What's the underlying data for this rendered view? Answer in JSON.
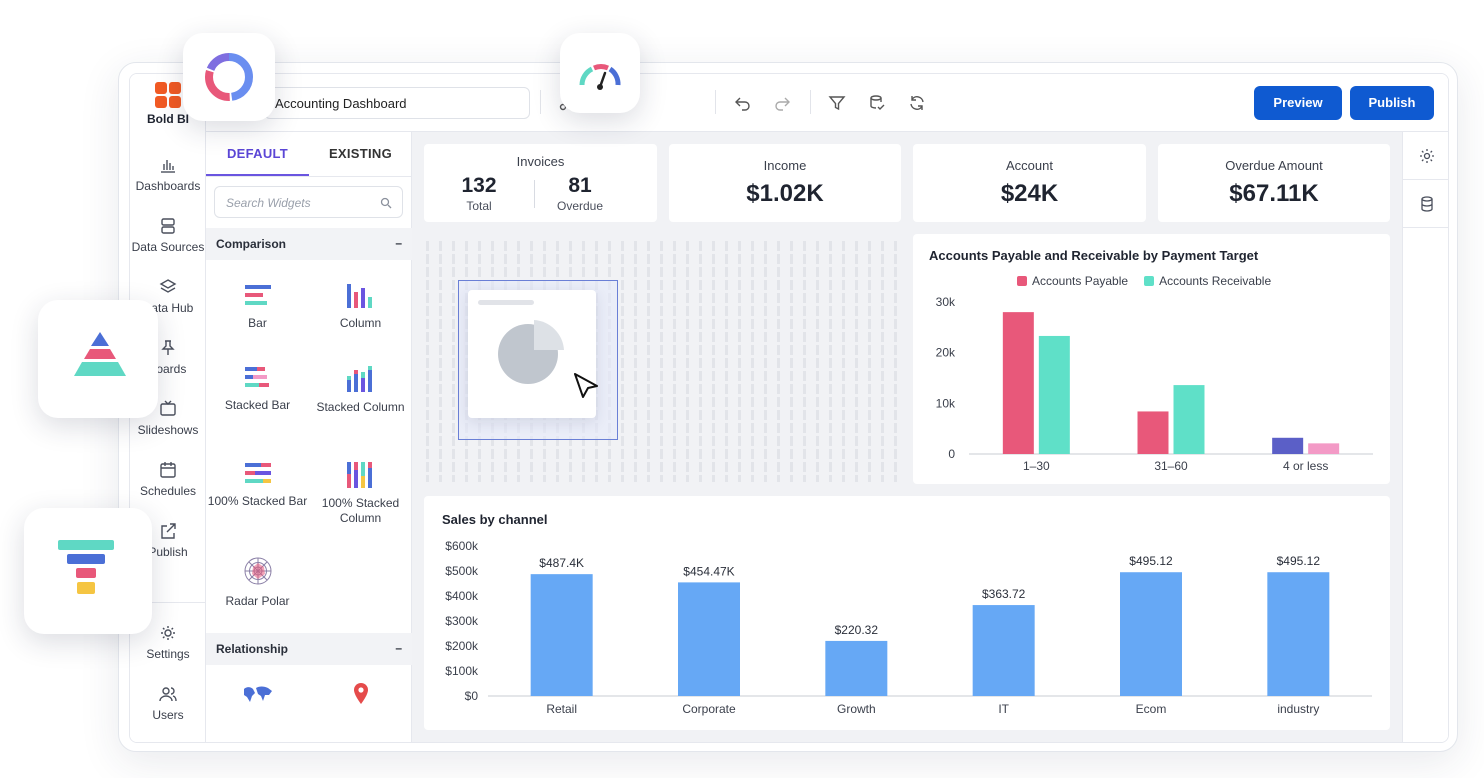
{
  "app": {
    "brand": "Bold BI",
    "dashboard_name": "Accounting Dashboard"
  },
  "nav": {
    "items": [
      {
        "label": "Dashboards",
        "icon": "bar-chart-icon"
      },
      {
        "label": "Data Sources",
        "icon": "database-icon"
      },
      {
        "label": "Data Hub",
        "icon": "layers-icon"
      },
      {
        "label": "Boards",
        "icon": "pin-icon",
        "visible_label": "boards"
      },
      {
        "label": "Slideshows",
        "icon": "tv-icon"
      },
      {
        "label": "Schedules",
        "icon": "calendar-icon"
      },
      {
        "label": "Publish",
        "icon": "external-link-icon"
      }
    ],
    "bottom": [
      {
        "label": "Settings",
        "icon": "gear-icon"
      },
      {
        "label": "Users",
        "icon": "users-icon"
      }
    ]
  },
  "toolbar": {
    "preview_label": "Preview",
    "publish_label": "Publish"
  },
  "panel": {
    "tabs": [
      "DEFAULT",
      "EXISTING"
    ],
    "search_placeholder": "Search Widgets",
    "sections": [
      {
        "title": "Comparison",
        "toggle": "–",
        "widgets": [
          "Bar",
          "Column",
          "Stacked Bar",
          "Stacked Column",
          "100% Stacked Bar",
          "100% Stacked Column",
          "Radar Polar"
        ]
      },
      {
        "title": "Relationship",
        "toggle": "–",
        "widgets": []
      }
    ]
  },
  "kpis": {
    "invoices": {
      "title": "Invoices",
      "total": "132",
      "total_label": "Total",
      "overdue": "81",
      "overdue_label": "Overdue"
    },
    "income": {
      "title": "Income",
      "value": "$1.02K"
    },
    "account": {
      "title": "Account",
      "value": "$24K"
    },
    "overdue_amount": {
      "title": "Overdue Amount",
      "value": "$67.11K"
    }
  },
  "colors": {
    "payable": "#e8587a",
    "receivable": "#5fe0c8",
    "payable_alt": "#5b5fc7",
    "receivable_alt": "#f39ac6",
    "sales": "#66a8f5",
    "accent": "#0f5ad1"
  },
  "chart_data": [
    {
      "type": "bar",
      "title": "Accounts Payable and Receivable by Payment Target",
      "categories": [
        "1–30",
        "31–60",
        "4 or less"
      ],
      "series": [
        {
          "name": "Accounts Payable",
          "values": [
            28000,
            8400,
            3200
          ]
        },
        {
          "name": "Accounts Receivable",
          "values": [
            23300,
            13600,
            2100
          ]
        }
      ],
      "y_ticks": [
        "0",
        "10k",
        "20k",
        "30k"
      ],
      "ylim": [
        0,
        30000
      ],
      "legend": "top"
    },
    {
      "type": "bar",
      "title": "Sales by channel",
      "categories": [
        "Retail",
        "Corporate",
        "Growth",
        "IT",
        "Ecom",
        "industry"
      ],
      "values": [
        487400,
        454470,
        220320,
        363720,
        495120,
        495120
      ],
      "data_labels": [
        "$487.4K",
        "$454.47K",
        "$220.32",
        "$363.72",
        "$495.12",
        "$495.12"
      ],
      "y_ticks": [
        "$0",
        "$100k",
        "$200k",
        "$300k",
        "$400k",
        "$500k",
        "$600k"
      ],
      "ylim": [
        0,
        600000
      ]
    }
  ]
}
